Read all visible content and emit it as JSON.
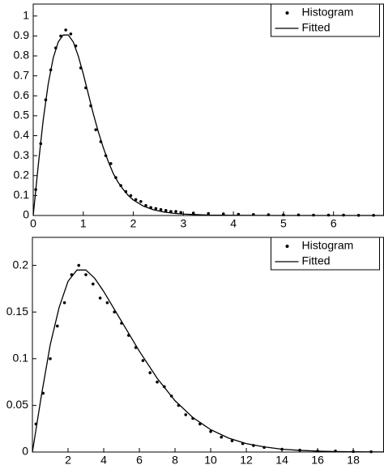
{
  "chart_data": [
    {
      "type": "line",
      "xlim": [
        0,
        7
      ],
      "ylim": [
        0,
        1.06
      ],
      "xticks": [
        0,
        1,
        2,
        3,
        4,
        5,
        6
      ],
      "yticks": [
        0,
        0.1,
        0.2,
        0.3,
        0.4,
        0.5,
        0.6,
        0.7,
        0.8,
        0.9,
        1
      ],
      "legend": "upper right",
      "series": [
        {
          "name": "Histogram",
          "color": "#000000",
          "mode": "markers",
          "x": [
            0.05,
            0.15,
            0.25,
            0.35,
            0.45,
            0.55,
            0.65,
            0.75,
            0.85,
            0.95,
            1.05,
            1.15,
            1.25,
            1.35,
            1.45,
            1.55,
            1.65,
            1.75,
            1.85,
            1.95,
            2.05,
            2.15,
            2.25,
            2.35,
            2.45,
            2.55,
            2.65,
            2.75,
            2.85,
            2.95,
            3.2,
            3.5,
            3.8,
            4.1,
            4.4,
            4.7,
            5.0,
            5.3,
            5.6,
            5.9,
            6.2,
            6.5,
            6.8
          ],
          "values": [
            0.13,
            0.36,
            0.58,
            0.73,
            0.84,
            0.9,
            0.93,
            0.91,
            0.85,
            0.74,
            0.64,
            0.55,
            0.43,
            0.37,
            0.3,
            0.26,
            0.19,
            0.15,
            0.12,
            0.1,
            0.08,
            0.07,
            0.05,
            0.04,
            0.035,
            0.03,
            0.025,
            0.02,
            0.02,
            0.015,
            0.012,
            0.01,
            0.008,
            0.006,
            0.005,
            0.004,
            0.003,
            0.003,
            0.002,
            0.002,
            0.002,
            0.001,
            0.001
          ]
        },
        {
          "name": "Fitted",
          "color": "#000000",
          "mode": "line",
          "x": [
            0,
            0.1,
            0.2,
            0.3,
            0.4,
            0.5,
            0.6,
            0.7,
            0.8,
            0.9,
            1.0,
            1.1,
            1.2,
            1.3,
            1.4,
            1.5,
            1.6,
            1.7,
            1.8,
            1.9,
            2.0,
            2.2,
            2.4,
            2.6,
            2.8,
            3.0,
            3.5,
            4,
            5,
            6,
            7
          ],
          "values": [
            0,
            0.25,
            0.48,
            0.66,
            0.79,
            0.87,
            0.905,
            0.905,
            0.87,
            0.8,
            0.71,
            0.61,
            0.51,
            0.42,
            0.34,
            0.27,
            0.21,
            0.165,
            0.13,
            0.1,
            0.078,
            0.047,
            0.029,
            0.018,
            0.011,
            0.007,
            0.002,
            0.001,
            0,
            0,
            0
          ]
        }
      ]
    },
    {
      "type": "line",
      "xlim": [
        0,
        19.7
      ],
      "ylim": [
        0,
        0.23
      ],
      "xticks": [
        2,
        4,
        6,
        8,
        10,
        12,
        14,
        16,
        18
      ],
      "yticks": [
        0,
        0.05,
        0.1,
        0.15,
        0.2
      ],
      "legend": "upper right",
      "series": [
        {
          "name": "Histogram",
          "color": "#000000",
          "mode": "markers",
          "x": [
            0.2,
            0.6,
            1,
            1.4,
            1.8,
            2.2,
            2.6,
            3,
            3.4,
            3.8,
            4.2,
            4.6,
            5,
            5.4,
            5.8,
            6.2,
            6.6,
            7,
            7.4,
            7.8,
            8.2,
            8.6,
            9,
            9.4,
            10,
            10.6,
            11.2,
            11.8,
            12.4,
            13,
            14,
            15,
            16,
            17,
            18,
            19
          ],
          "values": [
            0.03,
            0.063,
            0.1,
            0.135,
            0.16,
            0.19,
            0.2,
            0.19,
            0.18,
            0.165,
            0.16,
            0.15,
            0.138,
            0.125,
            0.112,
            0.098,
            0.085,
            0.075,
            0.07,
            0.06,
            0.05,
            0.04,
            0.036,
            0.03,
            0.022,
            0.016,
            0.012,
            0.009,
            0.007,
            0.005,
            0.003,
            0.002,
            0.001,
            0.001,
            0.0005,
            0.0003
          ]
        },
        {
          "name": "Fitted",
          "color": "#000000",
          "mode": "line",
          "x": [
            0,
            0.5,
            1,
            1.5,
            2,
            2.5,
            3,
            3.5,
            4,
            5,
            6,
            7,
            8,
            9,
            10,
            11,
            12,
            13,
            14,
            15,
            16,
            17,
            18,
            19.7
          ],
          "values": [
            0,
            0.06,
            0.115,
            0.155,
            0.183,
            0.195,
            0.195,
            0.186,
            0.172,
            0.14,
            0.108,
            0.079,
            0.055,
            0.037,
            0.024,
            0.015,
            0.009,
            0.0055,
            0.003,
            0.0018,
            0.001,
            0.0005,
            0.0003,
            0.0001
          ]
        }
      ]
    }
  ]
}
